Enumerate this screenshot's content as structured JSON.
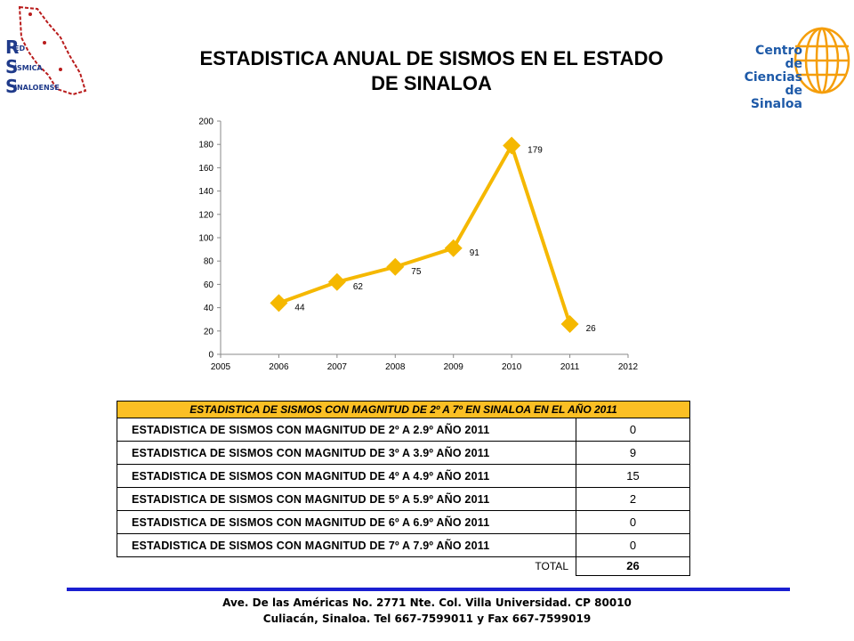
{
  "logo_left": {
    "letters": [
      "R",
      "S",
      "S"
    ],
    "words": [
      "ED",
      "ÍSMICA",
      "INALOENSE"
    ]
  },
  "logo_right": {
    "line1": "Centro",
    "line2": "de Ciencias",
    "line3": "de Sinaloa"
  },
  "title_line1": "ESTADISTICA ANUAL DE SISMOS EN EL ESTADO",
  "title_line2": "DE SINALOA",
  "colors": {
    "series": "#f5b800",
    "accent": "#fbbf24",
    "divider": "#1a1fd1"
  },
  "chart_data": {
    "type": "line",
    "x": [
      2006,
      2007,
      2008,
      2009,
      2010,
      2011
    ],
    "series": [
      {
        "values": [
          44,
          62,
          75,
          91,
          179,
          26
        ]
      }
    ],
    "data_labels": [
      "44",
      "62",
      "75",
      "91",
      "179",
      "26"
    ],
    "xlim": [
      2005,
      2012
    ],
    "ylim": [
      0,
      200
    ],
    "x_ticks": [
      "2005",
      "2006",
      "2007",
      "2008",
      "2009",
      "2010",
      "2011",
      "2012"
    ],
    "y_ticks": [
      "0",
      "20",
      "40",
      "60",
      "80",
      "100",
      "120",
      "140",
      "160",
      "180",
      "200"
    ],
    "marker": "diamond",
    "grid": false
  },
  "table": {
    "header": "ESTADISTICA DE SISMOS CON MAGNITUD DE 2º A 7º EN SINALOA EN EL AÑO 2011",
    "rows": [
      {
        "label": "ESTADISTICA DE SISMOS CON MAGNITUD DE 2º A 2.9º AÑO 2011",
        "value": "0"
      },
      {
        "label": "ESTADISTICA DE SISMOS CON MAGNITUD DE 3º A 3.9º AÑO 2011",
        "value": "9"
      },
      {
        "label": "ESTADISTICA DE SISMOS CON MAGNITUD DE 4º A 4.9º AÑO 2011",
        "value": "15"
      },
      {
        "label": "ESTADISTICA DE SISMOS CON MAGNITUD DE 5º A 5.9º AÑO 2011",
        "value": "2"
      },
      {
        "label": "ESTADISTICA DE SISMOS CON MAGNITUD DE 6º A 6.9º AÑO 2011",
        "value": "0"
      },
      {
        "label": "ESTADISTICA DE SISMOS CON MAGNITUD DE 7º A 7.9º AÑO 2011",
        "value": "0"
      }
    ],
    "total_label": "TOTAL",
    "total_value": "26"
  },
  "footer": {
    "line1": "Ave. De las Américas No. 2771 Nte. Col. Villa Universidad. CP 80010",
    "line2": "Culiacán, Sinaloa.  Tel 667-7599011 y Fax 667-7599019"
  }
}
